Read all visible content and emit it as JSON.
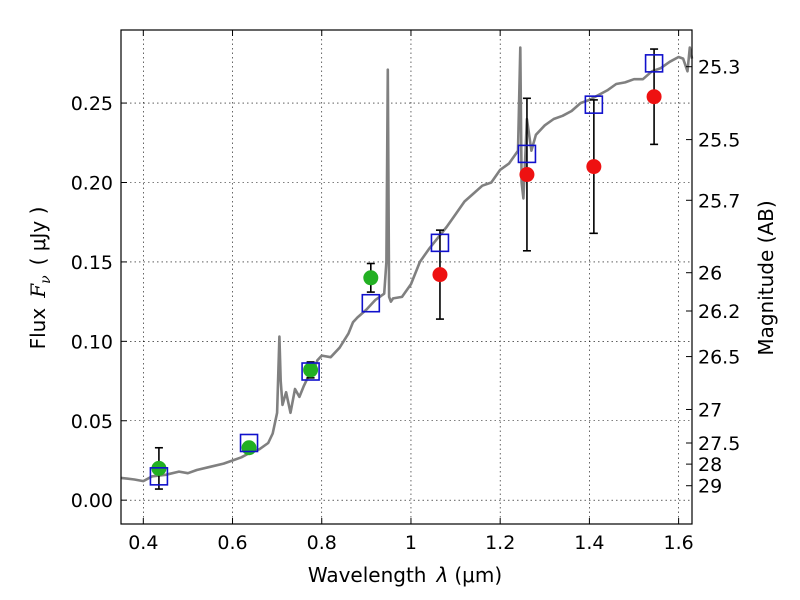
{
  "chart_data": {
    "type": "scatter",
    "title": "",
    "xlabel_prefix": "Wavelength",
    "xlabel_symbol": "λ",
    "xlabel_unit": "(μm)",
    "ylabel_prefix": "Flux",
    "ylabel_symbol": "F",
    "ylabel_subscript": "ν",
    "ylabel_unit": "( μJy )",
    "ylabel_right": "Magnitude (AB)",
    "xlim": [
      0.35,
      1.63
    ],
    "ylim": [
      -0.015,
      0.296
    ],
    "grid": true,
    "x_ticks": [
      0.4,
      0.6,
      0.8,
      1.0,
      1.2,
      1.4,
      1.6
    ],
    "x_tick_labels": [
      "0.4",
      "0.6",
      "0.8",
      "1",
      "1.2",
      "1.4",
      "1.6"
    ],
    "y_ticks": [
      0.0,
      0.05,
      0.1,
      0.15,
      0.2,
      0.25
    ],
    "y_tick_labels": [
      "0.00",
      "0.05",
      "0.10",
      "0.15",
      "0.20",
      "0.25"
    ],
    "right_ticks": [
      {
        "label": "25.3",
        "flux": 0.2729
      },
      {
        "label": "25.5",
        "flux": 0.227
      },
      {
        "label": "25.7",
        "flux": 0.1888
      },
      {
        "label": "26",
        "flux": 0.1432
      },
      {
        "label": "26.2",
        "flux": 0.1191
      },
      {
        "label": "26.5",
        "flux": 0.0904
      },
      {
        "label": "27",
        "flux": 0.0571
      },
      {
        "label": "27.5",
        "flux": 0.036
      },
      {
        "label": "28",
        "flux": 0.0227
      },
      {
        "label": "29",
        "flux": 0.0091
      }
    ],
    "spectrum": {
      "color": "#808080",
      "x": [
        0.35,
        0.38,
        0.4,
        0.42,
        0.45,
        0.48,
        0.5,
        0.52,
        0.55,
        0.58,
        0.6,
        0.62,
        0.64,
        0.66,
        0.68,
        0.69,
        0.7,
        0.705,
        0.708,
        0.712,
        0.72,
        0.73,
        0.74,
        0.75,
        0.76,
        0.77,
        0.78,
        0.79,
        0.8,
        0.82,
        0.84,
        0.86,
        0.87,
        0.88,
        0.9,
        0.92,
        0.94,
        0.945,
        0.948,
        0.951,
        0.955,
        0.96,
        0.98,
        1.0,
        1.02,
        1.04,
        1.06,
        1.08,
        1.1,
        1.12,
        1.14,
        1.16,
        1.18,
        1.2,
        1.22,
        1.24,
        1.245,
        1.248,
        1.252,
        1.256,
        1.26,
        1.27,
        1.28,
        1.3,
        1.32,
        1.34,
        1.36,
        1.38,
        1.4,
        1.42,
        1.44,
        1.46,
        1.48,
        1.5,
        1.52,
        1.54,
        1.56,
        1.58,
        1.6,
        1.61,
        1.62,
        1.625,
        1.63
      ],
      "y": [
        0.014,
        0.013,
        0.012,
        0.015,
        0.016,
        0.018,
        0.017,
        0.019,
        0.021,
        0.023,
        0.025,
        0.027,
        0.03,
        0.032,
        0.036,
        0.042,
        0.055,
        0.103,
        0.075,
        0.06,
        0.068,
        0.055,
        0.07,
        0.065,
        0.072,
        0.078,
        0.08,
        0.088,
        0.091,
        0.09,
        0.096,
        0.105,
        0.112,
        0.115,
        0.12,
        0.126,
        0.13,
        0.15,
        0.271,
        0.128,
        0.125,
        0.127,
        0.128,
        0.136,
        0.15,
        0.158,
        0.165,
        0.172,
        0.18,
        0.188,
        0.193,
        0.198,
        0.2,
        0.208,
        0.212,
        0.22,
        0.285,
        0.2,
        0.19,
        0.215,
        0.24,
        0.22,
        0.23,
        0.236,
        0.24,
        0.242,
        0.245,
        0.25,
        0.252,
        0.255,
        0.258,
        0.262,
        0.263,
        0.265,
        0.265,
        0.27,
        0.272,
        0.276,
        0.279,
        0.278,
        0.27,
        0.285,
        0.278
      ]
    },
    "series": [
      {
        "marker": "circle",
        "color": "#22b022",
        "points": [
          {
            "x": 0.435,
            "y": 0.02,
            "yerr": 0.013
          },
          {
            "x": 0.637,
            "y": 0.033,
            "yerr": 0.003
          },
          {
            "x": 0.775,
            "y": 0.082,
            "yerr": 0.005
          },
          {
            "x": 0.91,
            "y": 0.14,
            "yerr": 0.009
          }
        ]
      },
      {
        "marker": "circle",
        "color": "#ee1111",
        "points": [
          {
            "x": 1.065,
            "y": 0.142,
            "yerr": 0.028
          },
          {
            "x": 1.26,
            "y": 0.205,
            "yerr": 0.048
          },
          {
            "x": 1.41,
            "y": 0.21,
            "yerr": 0.042
          },
          {
            "x": 1.545,
            "y": 0.254,
            "yerr": 0.03
          }
        ]
      },
      {
        "marker": "square",
        "color": "#1010cc",
        "points": [
          {
            "x": 0.435,
            "y": 0.015
          },
          {
            "x": 0.637,
            "y": 0.036
          },
          {
            "x": 0.775,
            "y": 0.081
          },
          {
            "x": 0.91,
            "y": 0.124
          },
          {
            "x": 1.065,
            "y": 0.162
          },
          {
            "x": 1.26,
            "y": 0.218
          },
          {
            "x": 1.41,
            "y": 0.249
          },
          {
            "x": 1.545,
            "y": 0.275
          }
        ]
      }
    ]
  }
}
